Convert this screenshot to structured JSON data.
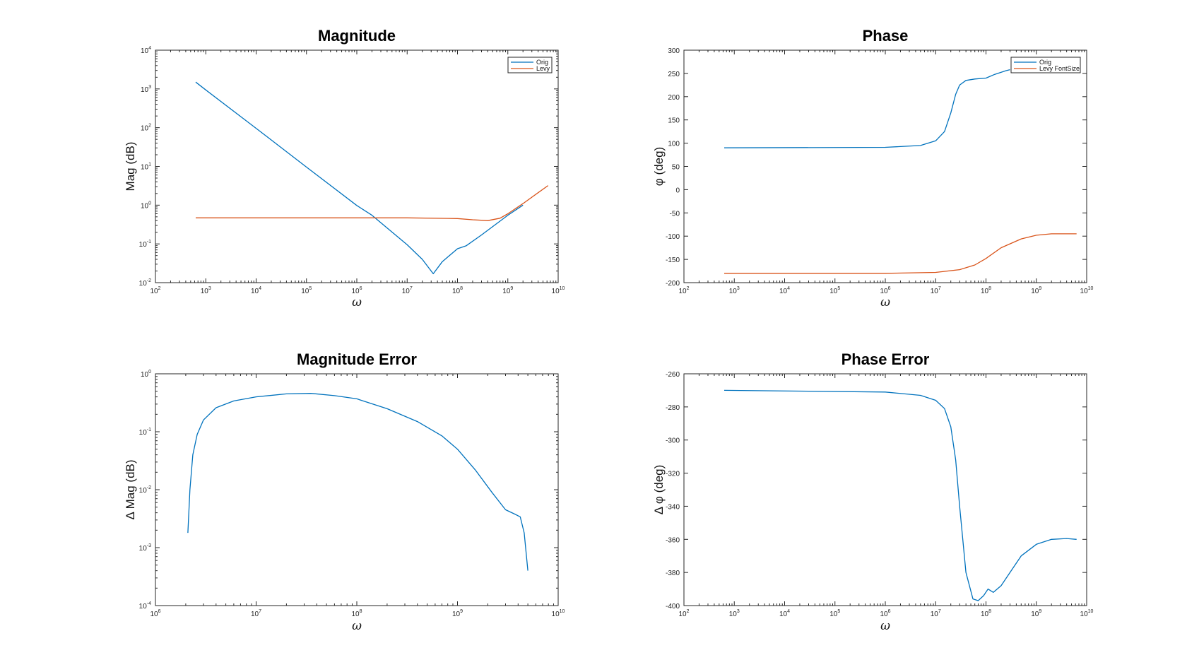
{
  "chart_data": [
    {
      "id": "magnitude",
      "type": "line",
      "title": "Magnitude",
      "xlabel": "ω",
      "ylabel": "Mag (dB)",
      "xscale": "log",
      "yscale": "log",
      "xlim": [
        100,
        10000000000
      ],
      "ylim": [
        0.01,
        10000
      ],
      "xticks": [
        {
          "base": "10",
          "exp": "2"
        },
        {
          "base": "10",
          "exp": "3"
        },
        {
          "base": "10",
          "exp": "4"
        },
        {
          "base": "10",
          "exp": "5"
        },
        {
          "base": "10",
          "exp": "6"
        },
        {
          "base": "10",
          "exp": "7"
        },
        {
          "base": "10",
          "exp": "8"
        },
        {
          "base": "10",
          "exp": "9"
        },
        {
          "base": "10",
          "exp": "10"
        }
      ],
      "yticks": [
        {
          "base": "10",
          "exp": "-2"
        },
        {
          "base": "10",
          "exp": "-1"
        },
        {
          "base": "10",
          "exp": "0"
        },
        {
          "base": "10",
          "exp": "1"
        },
        {
          "base": "10",
          "exp": "2"
        },
        {
          "base": "10",
          "exp": "3"
        },
        {
          "base": "10",
          "exp": "4"
        }
      ],
      "legend": {
        "position": "top-right",
        "entries": [
          "Orig",
          "Levy"
        ]
      },
      "series": [
        {
          "name": "Orig",
          "color": "#0072bd",
          "x": [
            630,
            1000,
            10000,
            100000,
            1000000,
            2000000,
            10000000,
            20000000,
            33000000,
            50000000,
            100000000,
            150000000,
            300000000,
            1000000000,
            2000000000
          ],
          "y": [
            1500,
            940,
            96,
            9.6,
            0.98,
            0.55,
            0.095,
            0.04,
            0.017,
            0.035,
            0.075,
            0.09,
            0.17,
            0.55,
            1.0
          ]
        },
        {
          "name": "Levy",
          "color": "#d95319",
          "x": [
            630,
            10000000,
            100000000,
            200000000,
            400000000,
            700000000,
            1000000000,
            2000000000,
            6300000000
          ],
          "y": [
            0.47,
            0.47,
            0.45,
            0.42,
            0.4,
            0.46,
            0.6,
            1.1,
            3.2
          ]
        }
      ]
    },
    {
      "id": "phase",
      "type": "line",
      "title": "Phase",
      "xlabel": "ω",
      "ylabel": "φ (deg)",
      "xscale": "log",
      "yscale": "linear",
      "xlim": [
        100,
        10000000000
      ],
      "ylim": [
        -200,
        300
      ],
      "xticks": [
        {
          "base": "10",
          "exp": "2"
        },
        {
          "base": "10",
          "exp": "3"
        },
        {
          "base": "10",
          "exp": "4"
        },
        {
          "base": "10",
          "exp": "5"
        },
        {
          "base": "10",
          "exp": "6"
        },
        {
          "base": "10",
          "exp": "7"
        },
        {
          "base": "10",
          "exp": "8"
        },
        {
          "base": "10",
          "exp": "9"
        },
        {
          "base": "10",
          "exp": "10"
        }
      ],
      "yticks": [
        "-200",
        "-150",
        "-100",
        "-50",
        "0",
        "50",
        "100",
        "150",
        "200",
        "250",
        "300"
      ],
      "legend": {
        "position": "top-right",
        "entries": [
          "Orig",
          "Levy FontSize"
        ]
      },
      "series": [
        {
          "name": "Orig",
          "color": "#0072bd",
          "x": [
            630,
            1000000,
            5000000,
            10000000,
            15000000,
            20000000,
            25000000,
            30000000,
            40000000,
            60000000,
            100000000,
            150000000,
            250000000,
            300000000
          ],
          "y": [
            90,
            91,
            95,
            105,
            125,
            165,
            205,
            225,
            235,
            238,
            240,
            248,
            256,
            258
          ]
        },
        {
          "name": "Levy FontSize",
          "color": "#d95319",
          "x": [
            630,
            1000000,
            10000000,
            30000000,
            60000000,
            100000000,
            200000000,
            500000000,
            1000000000,
            2000000000,
            6300000000
          ],
          "y": [
            -180,
            -180,
            -178,
            -172,
            -162,
            -148,
            -125,
            -106,
            -98,
            -95,
            -95
          ]
        }
      ]
    },
    {
      "id": "magnitude-error",
      "type": "line",
      "title": "Magnitude Error",
      "xlabel": "ω",
      "ylabel": "Δ Mag (dB)",
      "xscale": "log",
      "yscale": "log",
      "xlim": [
        1000000,
        10000000000
      ],
      "ylim": [
        0.0001,
        1
      ],
      "xticks": [
        {
          "base": "10",
          "exp": "6"
        },
        {
          "base": "10",
          "exp": "7"
        },
        {
          "base": "10",
          "exp": "8"
        },
        {
          "base": "10",
          "exp": "9"
        },
        {
          "base": "10",
          "exp": "10"
        }
      ],
      "yticks": [
        {
          "base": "10",
          "exp": "-4"
        },
        {
          "base": "10",
          "exp": "-3"
        },
        {
          "base": "10",
          "exp": "-2"
        },
        {
          "base": "10",
          "exp": "-1"
        },
        {
          "base": "10",
          "exp": "0"
        }
      ],
      "series": [
        {
          "name": "",
          "color": "#0072bd",
          "x": [
            2100000,
            2200000,
            2350000,
            2600000,
            3000000,
            4000000,
            6000000,
            10000000,
            20000000,
            35000000,
            60000000,
            100000000,
            200000000,
            400000000,
            700000000,
            1000000000,
            1500000000,
            2200000000,
            3000000000,
            3700000000,
            4200000000,
            4600000000,
            5000000000
          ],
          "y": [
            0.0018,
            0.01,
            0.04,
            0.09,
            0.16,
            0.26,
            0.34,
            0.4,
            0.45,
            0.46,
            0.42,
            0.37,
            0.25,
            0.15,
            0.085,
            0.05,
            0.022,
            0.009,
            0.0045,
            0.0038,
            0.0034,
            0.0018,
            0.0004
          ]
        }
      ]
    },
    {
      "id": "phase-error",
      "type": "line",
      "title": "Phase Error",
      "xlabel": "ω",
      "ylabel": "Δ φ (deg)",
      "xscale": "log",
      "yscale": "linear",
      "xlim": [
        100,
        10000000000
      ],
      "ylim": [
        -400,
        -260
      ],
      "xticks": [
        {
          "base": "10",
          "exp": "2"
        },
        {
          "base": "10",
          "exp": "3"
        },
        {
          "base": "10",
          "exp": "4"
        },
        {
          "base": "10",
          "exp": "5"
        },
        {
          "base": "10",
          "exp": "6"
        },
        {
          "base": "10",
          "exp": "7"
        },
        {
          "base": "10",
          "exp": "8"
        },
        {
          "base": "10",
          "exp": "9"
        },
        {
          "base": "10",
          "exp": "10"
        }
      ],
      "yticks": [
        "-400",
        "-380",
        "-360",
        "-340",
        "-320",
        "-300",
        "-280",
        "-260"
      ],
      "series": [
        {
          "name": "",
          "color": "#0072bd",
          "x": [
            630,
            1000000,
            5000000,
            10000000,
            15000000,
            20000000,
            25000000,
            30000000,
            40000000,
            55000000,
            70000000,
            90000000,
            110000000,
            140000000,
            200000000,
            300000000,
            500000000,
            1000000000,
            2000000000,
            4000000000,
            6300000000
          ],
          "y": [
            -270,
            -271,
            -273,
            -276,
            -281,
            -292,
            -312,
            -340,
            -380,
            -396,
            -397,
            -394,
            -390,
            -392,
            -388,
            -380,
            -370,
            -363,
            -360,
            -359.5,
            -360
          ]
        }
      ]
    }
  ]
}
